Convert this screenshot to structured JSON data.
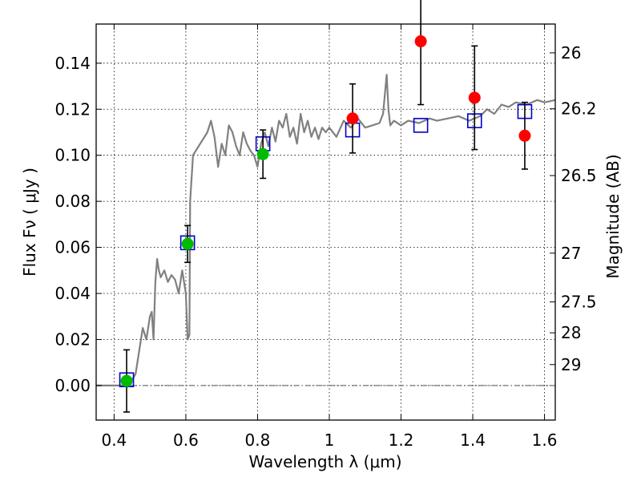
{
  "chart_data": {
    "type": "scatter",
    "xlabel": "Wavelength  λ (μm)",
    "ylabel": "Flux  Fν ( μJy )",
    "ylabel_right": "Magnitude (AB)",
    "xlim": [
      0.35,
      1.63
    ],
    "ylim": [
      -0.015,
      0.157
    ],
    "grid": true,
    "x_ticks": [
      0.4,
      0.6,
      0.8,
      1.0,
      1.2,
      1.4,
      1.6
    ],
    "x_tick_labels": [
      "0.4",
      "0.6",
      "0.8",
      "1",
      "1.2",
      "1.4",
      "1.6"
    ],
    "y_ticks": [
      0.0,
      0.02,
      0.04,
      0.06,
      0.08,
      0.1,
      0.12,
      0.14
    ],
    "y_tick_labels": [
      "0.00",
      "0.02",
      "0.04",
      "0.06",
      "0.08",
      "0.10",
      "0.12",
      "0.14"
    ],
    "mag_ticks": [
      {
        "label": "26",
        "flux": 0.1445
      },
      {
        "label": "26.2",
        "flux": 0.1202
      },
      {
        "label": "26.5",
        "flux": 0.0912
      },
      {
        "label": "27",
        "flux": 0.0575
      },
      {
        "label": "27.5",
        "flux": 0.0363
      },
      {
        "label": "28",
        "flux": 0.0229
      },
      {
        "label": "29",
        "flux": 0.0091
      }
    ],
    "zero_line": 0.0,
    "model_spectrum": {
      "color": "#808080",
      "x": [
        0.35,
        0.44,
        0.46,
        0.47,
        0.48,
        0.49,
        0.5,
        0.505,
        0.51,
        0.515,
        0.52,
        0.525,
        0.53,
        0.54,
        0.55,
        0.56,
        0.57,
        0.58,
        0.59,
        0.6,
        0.605,
        0.61,
        0.612,
        0.62,
        0.64,
        0.66,
        0.67,
        0.68,
        0.69,
        0.7,
        0.71,
        0.72,
        0.73,
        0.74,
        0.75,
        0.76,
        0.77,
        0.78,
        0.79,
        0.8,
        0.81,
        0.82,
        0.83,
        0.84,
        0.85,
        0.86,
        0.87,
        0.88,
        0.89,
        0.9,
        0.91,
        0.92,
        0.93,
        0.94,
        0.95,
        0.96,
        0.97,
        0.98,
        0.99,
        1.0,
        1.02,
        1.04,
        1.06,
        1.08,
        1.1,
        1.12,
        1.14,
        1.15,
        1.16,
        1.165,
        1.17,
        1.18,
        1.2,
        1.22,
        1.25,
        1.28,
        1.3,
        1.33,
        1.36,
        1.39,
        1.42,
        1.44,
        1.46,
        1.48,
        1.5,
        1.52,
        1.55,
        1.58,
        1.6,
        1.63
      ],
      "y": [
        0.0,
        0.0,
        0.005,
        0.015,
        0.025,
        0.02,
        0.03,
        0.032,
        0.02,
        0.045,
        0.055,
        0.05,
        0.047,
        0.05,
        0.045,
        0.048,
        0.046,
        0.04,
        0.05,
        0.04,
        0.02,
        0.022,
        0.08,
        0.1,
        0.105,
        0.11,
        0.115,
        0.108,
        0.095,
        0.105,
        0.1,
        0.113,
        0.11,
        0.104,
        0.1,
        0.11,
        0.105,
        0.102,
        0.1,
        0.095,
        0.105,
        0.11,
        0.104,
        0.112,
        0.106,
        0.115,
        0.112,
        0.118,
        0.108,
        0.112,
        0.105,
        0.118,
        0.11,
        0.115,
        0.108,
        0.112,
        0.107,
        0.112,
        0.11,
        0.112,
        0.108,
        0.115,
        0.112,
        0.116,
        0.112,
        0.113,
        0.114,
        0.118,
        0.135,
        0.12,
        0.113,
        0.115,
        0.113,
        0.115,
        0.114,
        0.116,
        0.115,
        0.116,
        0.117,
        0.115,
        0.117,
        0.12,
        0.118,
        0.122,
        0.121,
        0.123,
        0.122,
        0.124,
        0.123,
        0.124
      ]
    },
    "series": [
      {
        "marker": "open-square",
        "color": "#0000cc",
        "x": [
          0.435,
          0.605,
          0.815,
          1.065,
          1.255,
          1.405,
          1.545
        ],
        "y": [
          0.0025,
          0.062,
          0.105,
          0.111,
          0.113,
          0.115,
          0.119
        ]
      },
      {
        "marker": "filled-circle",
        "color": "#00bb00",
        "x": [
          0.435,
          0.605,
          0.815
        ],
        "y": [
          0.002,
          0.0615,
          0.1005
        ],
        "yerr": [
          0.0135,
          0.008,
          0.0105
        ]
      },
      {
        "marker": "filled-circle",
        "color": "#ff0000",
        "x": [
          1.065,
          1.255,
          1.405,
          1.545
        ],
        "y": [
          0.116,
          0.1495,
          0.125,
          0.1085
        ],
        "yerr": [
          0.015,
          0.0275,
          0.0225,
          0.0145
        ]
      }
    ]
  }
}
